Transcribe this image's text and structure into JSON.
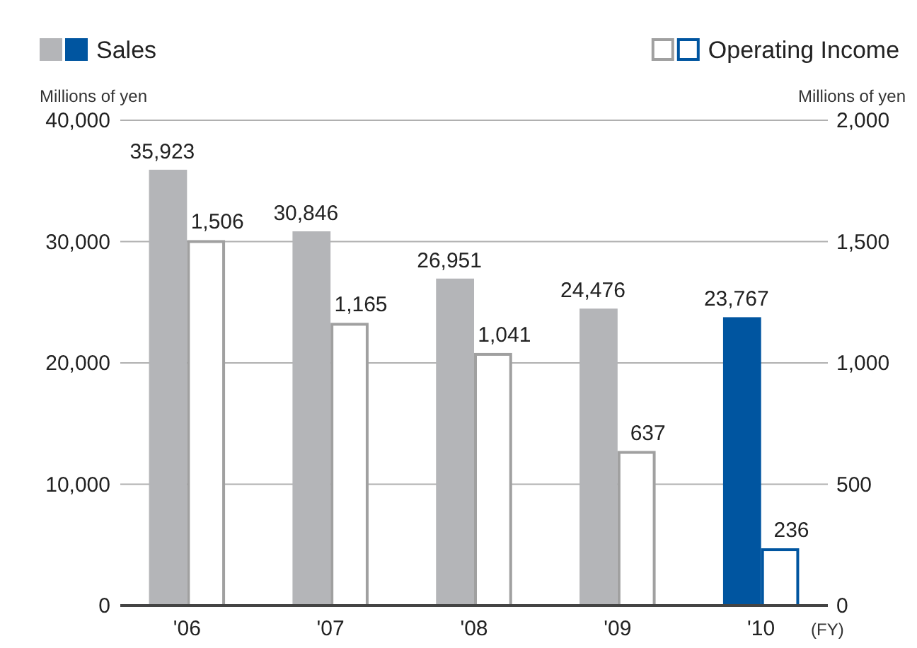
{
  "chart_data": {
    "type": "bar",
    "categories": [
      "'06",
      "'07",
      "'08",
      "'09",
      "'10"
    ],
    "xlabel": "(FY)",
    "ylabel": "Millions of yen",
    "y2label": "Millions of yen",
    "series": [
      {
        "name": "Sales",
        "colors": [
          "#b4b5b8",
          "#b4b5b8",
          "#b4b5b8",
          "#b4b5b8",
          "#0055a0"
        ],
        "values": [
          35923,
          30846,
          26951,
          24476,
          23767
        ],
        "value_labels": [
          "35,923",
          "30,846",
          "26,951",
          "24,476",
          "23,767"
        ]
      },
      {
        "name": "Operating Income",
        "axis": "y2",
        "colors": [
          "#a0a0a0",
          "#a0a0a0",
          "#a0a0a0",
          "#a0a0a0",
          "#0055a0"
        ],
        "values": [
          1506,
          1165,
          1041,
          637,
          236
        ],
        "value_labels": [
          "1,506",
          "1,165",
          "1,041",
          "637",
          "236"
        ]
      }
    ],
    "ylim": [
      0,
      40000
    ],
    "yticks": [
      {
        "value": 0,
        "label": "0"
      },
      {
        "value": 10000,
        "label": "10,000"
      },
      {
        "value": 20000,
        "label": "20,000"
      },
      {
        "value": 30000,
        "label": "30,000"
      },
      {
        "value": 40000,
        "label": "40,000"
      }
    ],
    "y2lim": [
      0,
      2000
    ],
    "y2ticks": [
      {
        "value": 0,
        "label": "0"
      },
      {
        "value": 500,
        "label": "500"
      },
      {
        "value": 1000,
        "label": "1,000"
      },
      {
        "value": 1500,
        "label": "1,500"
      },
      {
        "value": 2000,
        "label": "2,000"
      }
    ],
    "grid": "y",
    "legend": "top"
  }
}
